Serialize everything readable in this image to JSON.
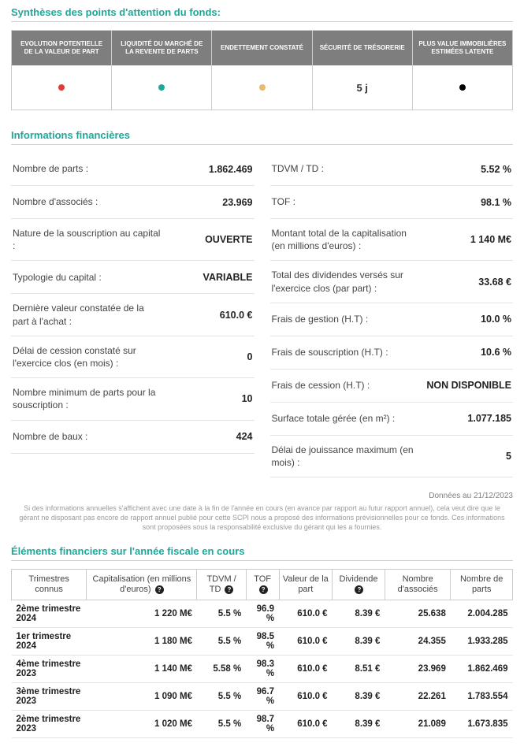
{
  "attention": {
    "title": "Synthèses des points d'attention du fonds:",
    "cols": [
      {
        "header": "EVOLUTION POTENTIELLE DE LA VALEUR DE PART",
        "dot_color": "#e53935"
      },
      {
        "header": "LIQUIDITÉ DU MARCHÉ DE LA REVENTE DE PARTS",
        "dot_color": "#1ca89a"
      },
      {
        "header": "ENDETTEMENT CONSTATÉ",
        "dot_color": "#e9b96e"
      },
      {
        "header": "SÉCURITÉ DE TRÉSORERIE",
        "text": "5 j"
      },
      {
        "header": "PLUS VALUE IMMOBILIÈRES ESTIMÉES LATENTE",
        "dot_color": "#000000"
      }
    ]
  },
  "financial": {
    "title": "Informations financières",
    "left": [
      {
        "label": "Nombre de parts :",
        "value": "1.862.469"
      },
      {
        "label": "Nombre d'associés :",
        "value": "23.969"
      },
      {
        "label": "Nature de la souscription au capital :",
        "value": "OUVERTE"
      },
      {
        "label": "Typologie du capital :",
        "value": "VARIABLE"
      },
      {
        "label": "Dernière valeur constatée de la part à l'achat :",
        "value": "610.0 €"
      },
      {
        "label": "Délai de cession constaté sur l'exercice clos (en mois) :",
        "value": "0"
      },
      {
        "label": "Nombre minimum de parts pour la souscription :",
        "value": "10"
      },
      {
        "label": "Nombre de baux :",
        "value": "424"
      }
    ],
    "right": [
      {
        "label": "TDVM / TD :",
        "value": "5.52 %"
      },
      {
        "label": "TOF :",
        "value": "98.1 %"
      },
      {
        "label": "Montant total de la capitalisation (en millions d'euros) :",
        "value": "1 140 M€"
      },
      {
        "label": "Total des dividendes versés sur l'exercice clos (par part) :",
        "value": "33.68 €"
      },
      {
        "label": "Frais de gestion (H.T) :",
        "value": "10.0 %"
      },
      {
        "label": "Frais de souscription (H.T) :",
        "value": "10.6 %"
      },
      {
        "label": "Frais de cession (H.T) :",
        "value": "NON DISPONIBLE"
      },
      {
        "label": "Surface totale gérée (en m²) :",
        "value": "1.077.185"
      },
      {
        "label": "Délai de jouissance maximum (en mois) :",
        "value": "5"
      }
    ],
    "footnote": "Données au 21/12/2023",
    "disclaimer": "Si des informations annuelles s'affichent avec une date à la fin de l'année en cours (en avance par rapport au futur rapport annuel), cela veut dire que le gérant ne disposant pas encore de rapport annuel publié pour cette SCPI nous a proposé des informations prévisionnelles pour ce fonds. Ces informations sont proposées sous la responsabilité exclusive du gérant qui les a fournies."
  },
  "fiscal": {
    "title": "Éléments financiers sur l'année fiscale en cours",
    "headers": [
      "Trimestres connus",
      "Capitalisation (en millions d'euros)",
      "TDVM / TD",
      "TOF",
      "Valeur de la part",
      "Dividende",
      "Nombre d'associés",
      "Nombre de parts"
    ],
    "help_on": [
      false,
      true,
      true,
      true,
      false,
      true,
      false,
      false
    ],
    "rows": [
      [
        "2ème trimestre 2024",
        "1 220 M€",
        "5.5 %",
        "96.9 %",
        "610.0 €",
        "8.39 €",
        "25.638",
        "2.004.285"
      ],
      [
        "1er trimestre 2024",
        "1 180 M€",
        "5.5 %",
        "98.5 %",
        "610.0 €",
        "8.39 €",
        "24.355",
        "1.933.285"
      ],
      [
        "4ème trimestre 2023",
        "1 140 M€",
        "5.58 %",
        "98.3 %",
        "610.0 €",
        "8.51 €",
        "23.969",
        "1.862.469"
      ],
      [
        "3ème trimestre 2023",
        "1 090 M€",
        "5.5 %",
        "96.7 %",
        "610.0 €",
        "8.39 €",
        "22.261",
        "1.783.554"
      ],
      [
        "2ème trimestre 2023",
        "1 020 M€",
        "5.5 %",
        "98.7 %",
        "610.0 €",
        "8.39 €",
        "21.089",
        "1.673.835"
      ]
    ]
  },
  "style": {
    "accent": "#1ca89a",
    "header_bg": "#7e7e7e",
    "border": "#d0d0d0"
  }
}
